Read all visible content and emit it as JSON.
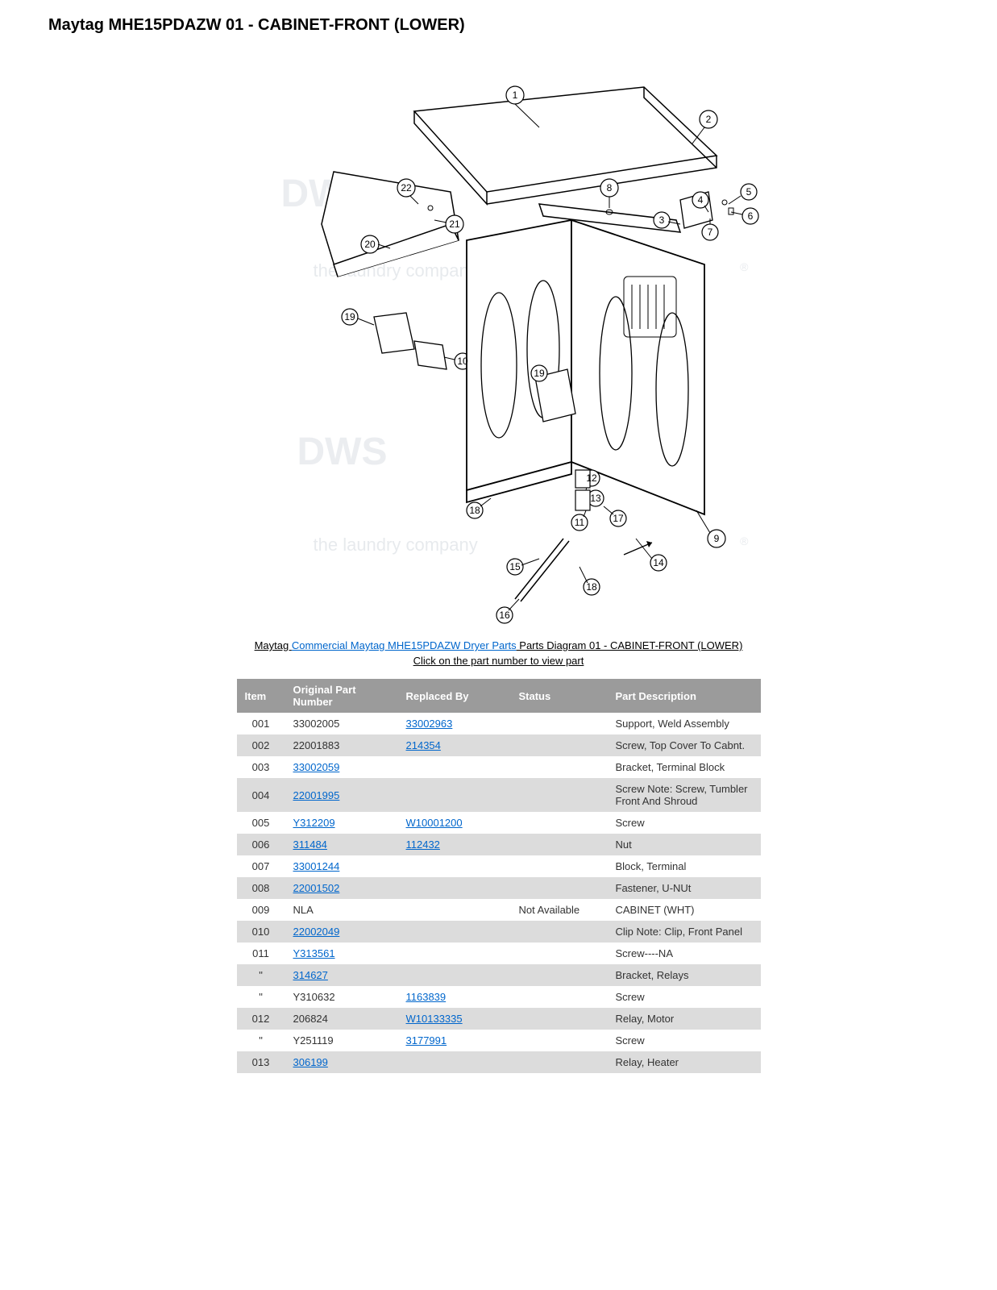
{
  "title": "Maytag MHE15PDAZW 01 - CABINET-FRONT (LOWER)",
  "breadcrumb": {
    "prefix": "Maytag ",
    "link": "Commercial Maytag MHE15PDAZW Dryer Parts",
    "suffix": " Parts Diagram 01 - CABINET-FRONT (LOWER)"
  },
  "subtext": "Click on the part number to view part",
  "watermark": {
    "logo": "DWS",
    "tag": "the laundry company",
    "reg": "®"
  },
  "callouts": [
    "1",
    "2",
    "3",
    "4",
    "5",
    "6",
    "7",
    "8",
    "9",
    "10",
    "11",
    "12",
    "13",
    "14",
    "15",
    "16",
    "17",
    "18",
    "18",
    "19",
    "19",
    "20",
    "21",
    "22"
  ],
  "table": {
    "headers": [
      "Item",
      "Original Part Number",
      "Replaced By",
      "Status",
      "Part Description"
    ],
    "rows": [
      {
        "item": "001",
        "orig": "33002005",
        "orig_link": false,
        "repl": "33002963",
        "repl_link": true,
        "status": "",
        "desc": "Support, Weld Assembly"
      },
      {
        "item": "002",
        "orig": "22001883",
        "orig_link": false,
        "repl": "214354",
        "repl_link": true,
        "status": "",
        "desc": "Screw, Top Cover To Cabnt."
      },
      {
        "item": "003",
        "orig": "33002059",
        "orig_link": true,
        "repl": "",
        "repl_link": false,
        "status": "",
        "desc": "Bracket, Terminal Block"
      },
      {
        "item": "004",
        "orig": "22001995",
        "orig_link": true,
        "repl": "",
        "repl_link": false,
        "status": "",
        "desc": "Screw Note: Screw, Tumbler Front And Shroud"
      },
      {
        "item": "005",
        "orig": "Y312209",
        "orig_link": true,
        "repl": "W10001200",
        "repl_link": true,
        "status": "",
        "desc": "Screw"
      },
      {
        "item": "006",
        "orig": "311484",
        "orig_link": true,
        "repl": "112432",
        "repl_link": true,
        "status": "",
        "desc": "Nut"
      },
      {
        "item": "007",
        "orig": "33001244",
        "orig_link": true,
        "repl": "",
        "repl_link": false,
        "status": "",
        "desc": "Block, Terminal"
      },
      {
        "item": "008",
        "orig": "22001502",
        "orig_link": true,
        "repl": "",
        "repl_link": false,
        "status": "",
        "desc": "Fastener, U-NUt"
      },
      {
        "item": "009",
        "orig": "NLA",
        "orig_link": false,
        "repl": "",
        "repl_link": false,
        "status": "Not Available",
        "desc": "CABINET (WHT)"
      },
      {
        "item": "010",
        "orig": "22002049",
        "orig_link": true,
        "repl": "",
        "repl_link": false,
        "status": "",
        "desc": "Clip Note: Clip, Front Panel"
      },
      {
        "item": "011",
        "orig": "Y313561",
        "orig_link": true,
        "repl": "",
        "repl_link": false,
        "status": "",
        "desc": "Screw----NA"
      },
      {
        "item": "\"",
        "orig": "314627",
        "orig_link": true,
        "repl": "",
        "repl_link": false,
        "status": "",
        "desc": "Bracket, Relays"
      },
      {
        "item": "\"",
        "orig": "Y310632",
        "orig_link": false,
        "repl": "1163839",
        "repl_link": true,
        "status": "",
        "desc": "Screw"
      },
      {
        "item": "012",
        "orig": "206824",
        "orig_link": false,
        "repl": "W10133335",
        "repl_link": true,
        "status": "",
        "desc": "Relay, Motor"
      },
      {
        "item": "\"",
        "orig": "Y251119",
        "orig_link": false,
        "repl": "3177991",
        "repl_link": true,
        "status": "",
        "desc": "Screw"
      },
      {
        "item": "013",
        "orig": "306199",
        "orig_link": true,
        "repl": "",
        "repl_link": false,
        "status": "",
        "desc": "Relay, Heater"
      }
    ]
  },
  "colors": {
    "header_bg": "#9b9b9b",
    "header_fg": "#ffffff",
    "row_even": "#dcdcdc",
    "row_odd": "#ffffff",
    "link": "#0066cc",
    "watermark": "#d8dde2"
  }
}
